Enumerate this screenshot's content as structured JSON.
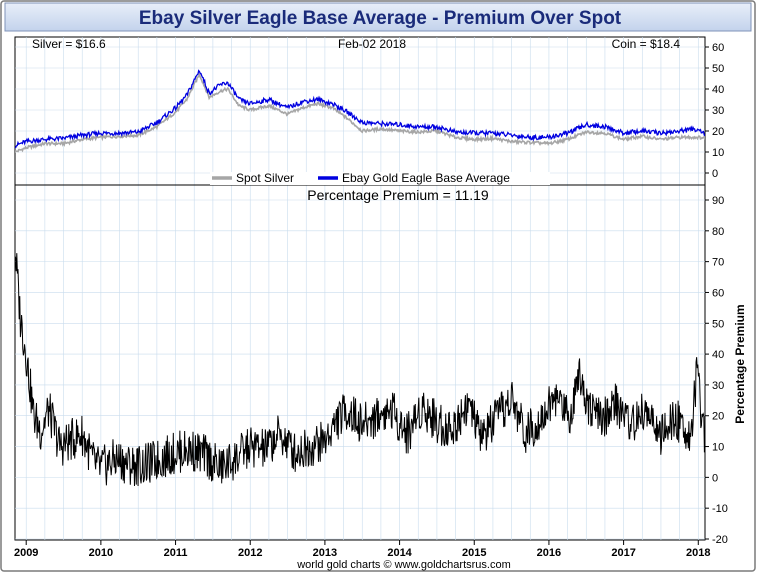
{
  "title": "Ebay Silver Eagle Base Average - Premium Over Spot",
  "footer": "world gold charts © www.goldchartsrus.com",
  "colors": {
    "title_bg": "#d2dff2",
    "title_text": "#1a2b7a",
    "silver": "#a6a6a6",
    "coin": "#0000e0",
    "premium": "#000000",
    "grid": "#c9dced"
  },
  "chart_data": [
    {
      "type": "line",
      "header": {
        "left": "Silver = $16.6",
        "center": "Feb-02  2018",
        "right": "Coin = $18.4"
      },
      "ylim": [
        0,
        60
      ],
      "yticks": [
        "0",
        "10",
        "20",
        "30",
        "40",
        "50",
        "60"
      ],
      "grid": true,
      "legend_position": "bottom-center",
      "series": [
        {
          "name": "Spot Silver",
          "color": "#a6a6a6",
          "x": [
            2008.85,
            2009.0,
            2009.25,
            2009.5,
            2009.75,
            2010.0,
            2010.25,
            2010.5,
            2010.75,
            2011.0,
            2011.15,
            2011.32,
            2011.45,
            2011.6,
            2011.7,
            2011.85,
            2012.0,
            2012.25,
            2012.5,
            2012.7,
            2012.9,
            2013.1,
            2013.3,
            2013.5,
            2013.75,
            2014.0,
            2014.25,
            2014.5,
            2014.75,
            2015.0,
            2015.25,
            2015.5,
            2015.75,
            2016.0,
            2016.25,
            2016.5,
            2016.75,
            2017.0,
            2017.25,
            2017.5,
            2017.75,
            2018.0,
            2018.09
          ],
          "y": [
            10,
            12,
            14,
            14,
            16,
            17,
            17.5,
            18,
            22,
            29,
            35,
            47,
            36,
            39,
            40,
            32,
            30,
            32,
            28,
            31,
            33,
            31,
            26,
            20,
            21,
            20,
            19.5,
            20,
            17,
            16,
            16.5,
            15,
            14.5,
            14,
            16,
            19.5,
            19,
            16,
            17.5,
            16,
            17,
            17,
            16.6
          ]
        },
        {
          "name": "Ebay Gold Eagle Base Average",
          "color": "#0000e0",
          "x": [
            2008.85,
            2009.0,
            2009.25,
            2009.5,
            2009.75,
            2010.0,
            2010.25,
            2010.5,
            2010.75,
            2011.0,
            2011.15,
            2011.32,
            2011.45,
            2011.6,
            2011.7,
            2011.85,
            2012.0,
            2012.25,
            2012.5,
            2012.7,
            2012.9,
            2013.1,
            2013.3,
            2013.5,
            2013.75,
            2014.0,
            2014.25,
            2014.5,
            2014.75,
            2015.0,
            2015.25,
            2015.5,
            2015.75,
            2016.0,
            2016.25,
            2016.5,
            2016.75,
            2017.0,
            2017.25,
            2017.5,
            2017.75,
            2018.0,
            2018.09
          ],
          "y": [
            13,
            15,
            16,
            16.5,
            18,
            19,
            19,
            19.5,
            24,
            31,
            37,
            49,
            38,
            42,
            43,
            35,
            33,
            35,
            31,
            34,
            35,
            33,
            29,
            24,
            23.5,
            23,
            22,
            22,
            19.5,
            19,
            19,
            18,
            17,
            17,
            19,
            23,
            22,
            19,
            20,
            19,
            20,
            21,
            18.4
          ]
        }
      ]
    },
    {
      "type": "line",
      "title": "Percentage Premium = 11.19",
      "ylabel": "Percentage Premium",
      "ylim": [
        -20,
        90
      ],
      "yticks": [
        "-20",
        "-10",
        "0",
        "10",
        "20",
        "30",
        "40",
        "50",
        "60",
        "70",
        "80",
        "90"
      ],
      "xticks": [
        "2009",
        "2010",
        "2011",
        "2012",
        "2013",
        "2014",
        "2015",
        "2016",
        "2017",
        "2018"
      ],
      "grid": true,
      "series": [
        {
          "color": "#000000",
          "x": [
            2008.85,
            2008.92,
            2009.0,
            2009.1,
            2009.2,
            2009.3,
            2009.45,
            2009.6,
            2009.75,
            2009.9,
            2010.0,
            2010.2,
            2010.4,
            2010.6,
            2010.8,
            2011.0,
            2011.2,
            2011.4,
            2011.6,
            2011.8,
            2012.0,
            2012.2,
            2012.4,
            2012.6,
            2012.8,
            2013.0,
            2013.15,
            2013.3,
            2013.5,
            2013.7,
            2013.9,
            2014.1,
            2014.3,
            2014.5,
            2014.7,
            2014.9,
            2015.1,
            2015.3,
            2015.5,
            2015.7,
            2015.9,
            2016.1,
            2016.3,
            2016.4,
            2016.5,
            2016.7,
            2016.9,
            2017.1,
            2017.3,
            2017.5,
            2017.7,
            2017.9,
            2017.98,
            2018.05,
            2018.09
          ],
          "y": [
            75,
            52,
            40,
            20,
            15,
            22,
            10,
            12,
            14,
            5,
            3,
            6,
            4,
            4,
            6,
            8,
            9,
            7,
            3,
            6,
            10,
            9,
            14,
            8,
            10,
            12,
            18,
            22,
            17,
            20,
            22,
            14,
            23,
            18,
            15,
            24,
            13,
            19,
            25,
            14,
            20,
            26,
            20,
            36,
            25,
            18,
            24,
            17,
            22,
            13,
            19,
            14,
            33,
            19,
            11.19
          ]
        }
      ]
    }
  ]
}
